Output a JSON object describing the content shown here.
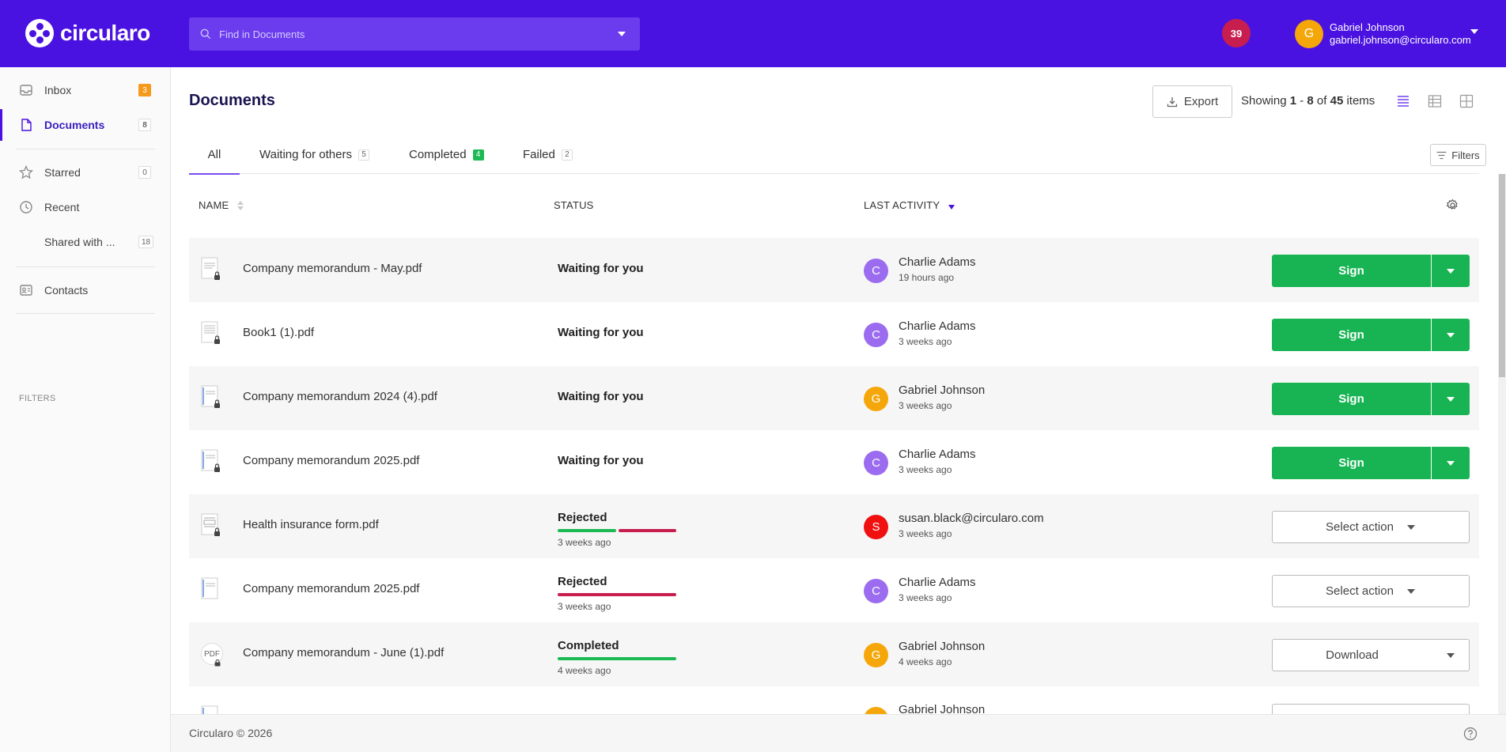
{
  "app": {
    "logo_text": "circularo"
  },
  "search": {
    "placeholder": "Find in Documents"
  },
  "header": {
    "notification_count": "39",
    "user_initial": "G",
    "user_name": "Gabriel Johnson",
    "user_email": "gabriel.johnson@circularo.com"
  },
  "sidebar": {
    "items": [
      {
        "label": "Inbox",
        "count": "3"
      },
      {
        "label": "Documents",
        "count": "8"
      },
      {
        "label": "Starred",
        "count": "0"
      },
      {
        "label": "Recent",
        "count": ""
      },
      {
        "label": "Shared with ...",
        "count": "18"
      },
      {
        "label": "Contacts",
        "count": ""
      }
    ],
    "filters_label": "FILTERS"
  },
  "main": {
    "title": "Documents",
    "export_label": "Export",
    "showing": {
      "prefix": "Showing ",
      "from": "1",
      "sep": " - ",
      "to": "8",
      "of": " of ",
      "total": "45",
      "suffix": " items"
    },
    "tabs": [
      {
        "label": "All",
        "count": ""
      },
      {
        "label": "Waiting for others",
        "count": "5"
      },
      {
        "label": "Completed",
        "count": "4"
      },
      {
        "label": "Failed",
        "count": "2"
      }
    ],
    "filters_label": "Filters",
    "columns": {
      "name": "NAME",
      "status": "STATUS",
      "last_activity": "LAST ACTIVITY"
    }
  },
  "rows": [
    {
      "file": "Company memorandum - May.pdf",
      "status": "Waiting for you",
      "status_time": "",
      "actor": "Charlie Adams",
      "actor_initial": "C",
      "actor_color": "#9b6cf0",
      "time": "19 hours ago",
      "action": "Sign"
    },
    {
      "file": "Book1 (1).pdf",
      "status": "Waiting for you",
      "status_time": "",
      "actor": "Charlie Adams",
      "actor_initial": "C",
      "actor_color": "#9b6cf0",
      "time": "3 weeks ago",
      "action": "Sign"
    },
    {
      "file": "Company memorandum 2024 (4).pdf",
      "status": "Waiting for you",
      "status_time": "",
      "actor": "Gabriel Johnson",
      "actor_initial": "G",
      "actor_color": "#f5a70a",
      "time": "3 weeks ago",
      "action": "Sign"
    },
    {
      "file": "Company memorandum 2025.pdf",
      "status": "Waiting for you",
      "status_time": "",
      "actor": "Charlie Adams",
      "actor_initial": "C",
      "actor_color": "#9b6cf0",
      "time": "3 weeks ago",
      "action": "Sign"
    },
    {
      "file": "Health insurance form.pdf",
      "status": "Rejected",
      "status_time": "3 weeks ago",
      "actor": "susan.black@circularo.com",
      "actor_initial": "S",
      "actor_color": "#f01010",
      "time": "3 weeks ago",
      "action": "Select action"
    },
    {
      "file": "Company memorandum 2025.pdf",
      "status": "Rejected",
      "status_time": "3 weeks ago",
      "actor": "Charlie Adams",
      "actor_initial": "C",
      "actor_color": "#9b6cf0",
      "time": "3 weeks ago",
      "action": "Select action"
    },
    {
      "file": "Company memorandum - June (1).pdf",
      "status": "Completed",
      "status_time": "4 weeks ago",
      "actor": "Gabriel Johnson",
      "actor_initial": "G",
      "actor_color": "#f5a70a",
      "time": "4 weeks ago",
      "action": "Download"
    },
    {
      "file": "",
      "status": "",
      "status_time": "",
      "actor": "Gabriel Johnson",
      "actor_initial": "",
      "actor_color": "#f5a70a",
      "time": "",
      "action": ""
    }
  ],
  "file_thumb_label": "PDF",
  "footer": {
    "copyright": "Circularo © 2026"
  },
  "colors": {
    "brand": "#4a12e0",
    "sign_green": "#18b454",
    "rejected": "#c81e4f",
    "progress_green": "#1db954"
  }
}
